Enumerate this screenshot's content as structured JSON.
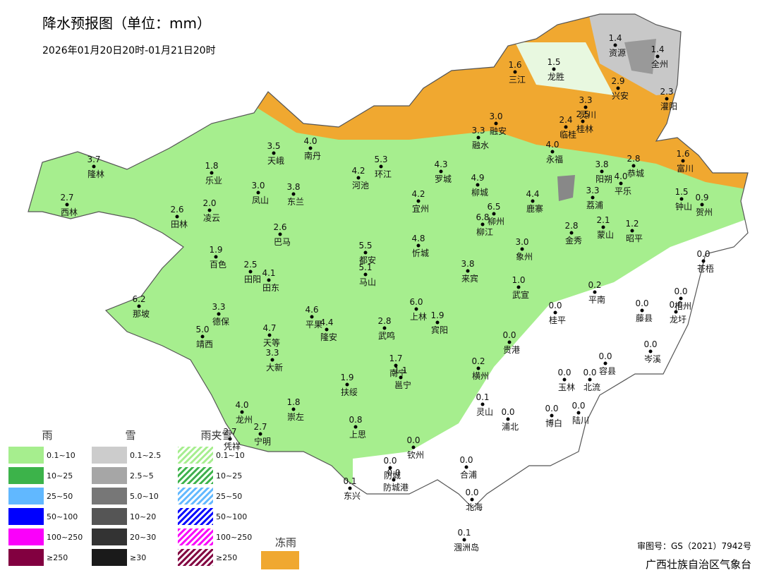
{
  "header": {
    "title": "降水预报图（单位：mm）",
    "subtitle": "2026年01月20日20时-01月21日20时"
  },
  "stations": [
    {
      "name": "隆林",
      "value": "3.7"
    },
    {
      "name": "西林",
      "value": "2.7"
    },
    {
      "name": "乐业",
      "value": "1.8"
    },
    {
      "name": "天峨",
      "value": "3.5"
    },
    {
      "name": "南丹",
      "value": "4.0"
    },
    {
      "name": "凤山",
      "value": "3.0"
    },
    {
      "name": "东兰",
      "value": "3.8"
    },
    {
      "name": "河池",
      "value": "4.2"
    },
    {
      "name": "环江",
      "value": "5.3"
    },
    {
      "name": "罗城",
      "value": "4.3"
    },
    {
      "name": "融水",
      "value": "3.3"
    },
    {
      "name": "融安",
      "value": "3.0"
    },
    {
      "name": "三江",
      "value": "1.6"
    },
    {
      "name": "龙胜",
      "value": "1.5"
    },
    {
      "name": "资源",
      "value": "1.4"
    },
    {
      "name": "全州",
      "value": "1.4"
    },
    {
      "name": "兴安",
      "value": "2.9"
    },
    {
      "name": "灌阳",
      "value": "2.3"
    },
    {
      "name": "灵川",
      "value": "3.3"
    },
    {
      "name": "桂林",
      "value": "2.5"
    },
    {
      "name": "临桂",
      "value": "2.4"
    },
    {
      "name": "永福",
      "value": "4.0"
    },
    {
      "name": "恭城",
      "value": "2.8"
    },
    {
      "name": "富川",
      "value": "1.6"
    },
    {
      "name": "阳朔",
      "value": "3.8"
    },
    {
      "name": "平乐",
      "value": "4.0"
    },
    {
      "name": "荔浦",
      "value": "3.3"
    },
    {
      "name": "钟山",
      "value": "1.5"
    },
    {
      "name": "贺州",
      "value": "0.9"
    },
    {
      "name": "宜州",
      "value": "4.2"
    },
    {
      "name": "柳城",
      "value": "4.9"
    },
    {
      "name": "鹿寨",
      "value": "4.4"
    },
    {
      "name": "柳州",
      "value": "6.5"
    },
    {
      "name": "柳江",
      "value": "6.8"
    },
    {
      "name": "蒙山",
      "value": "2.1"
    },
    {
      "name": "昭平",
      "value": "1.2"
    },
    {
      "name": "金秀",
      "value": "2.8"
    },
    {
      "name": "田林",
      "value": "2.6"
    },
    {
      "name": "凌云",
      "value": "2.0"
    },
    {
      "name": "巴马",
      "value": "2.6"
    },
    {
      "name": "百色",
      "value": "1.9"
    },
    {
      "name": "田阳",
      "value": "2.5"
    },
    {
      "name": "田东",
      "value": "4.1"
    },
    {
      "name": "都安",
      "value": "5.5"
    },
    {
      "name": "马山",
      "value": "5.1"
    },
    {
      "name": "忻城",
      "value": "4.8"
    },
    {
      "name": "象州",
      "value": "3.0"
    },
    {
      "name": "来宾",
      "value": "3.8"
    },
    {
      "name": "武宣",
      "value": "1.0"
    },
    {
      "name": "平南",
      "value": "0.2"
    },
    {
      "name": "桂平",
      "value": "0.0"
    },
    {
      "name": "苍梧",
      "value": "0.0"
    },
    {
      "name": "藤县",
      "value": "0.0"
    },
    {
      "name": "梧州",
      "value": "0.0"
    },
    {
      "name": "龙圩",
      "value": "0.0"
    },
    {
      "name": "那坡",
      "value": "6.2"
    },
    {
      "name": "德保",
      "value": "3.3"
    },
    {
      "name": "靖西",
      "value": "5.0"
    },
    {
      "name": "平果",
      "value": "4.6"
    },
    {
      "name": "隆安",
      "value": "4.4"
    },
    {
      "name": "天等",
      "value": "4.7"
    },
    {
      "name": "大新",
      "value": "3.3"
    },
    {
      "name": "武鸣",
      "value": "2.8"
    },
    {
      "name": "上林",
      "value": "6.0"
    },
    {
      "name": "宾阳",
      "value": "1.9"
    },
    {
      "name": "贵港",
      "value": "0.0"
    },
    {
      "name": "岑溪",
      "value": "0.0"
    },
    {
      "name": "横州",
      "value": "0.2"
    },
    {
      "name": "容县",
      "value": "0.0"
    },
    {
      "name": "玉林",
      "value": "0.0"
    },
    {
      "name": "北流",
      "value": "0.0"
    },
    {
      "name": "南宁",
      "value": "1.7"
    },
    {
      "name": "邕宁",
      "value": "1.1"
    },
    {
      "name": "扶绥",
      "value": "1.9"
    },
    {
      "name": "崇左",
      "value": "1.8"
    },
    {
      "name": "龙州",
      "value": "4.0"
    },
    {
      "name": "凭祥",
      "value": "2.7"
    },
    {
      "name": "宁明",
      "value": "2.7"
    },
    {
      "name": "灵山",
      "value": "0.1"
    },
    {
      "name": "浦北",
      "value": "0.0"
    },
    {
      "name": "博白",
      "value": "0.0"
    },
    {
      "name": "陆川",
      "value": "0.0"
    },
    {
      "name": "上思",
      "value": "0.8"
    },
    {
      "name": "钦州",
      "value": "0.0"
    },
    {
      "name": "防城",
      "value": "0.0"
    },
    {
      "name": "防城港",
      "value": "0.0"
    },
    {
      "name": "合浦",
      "value": "0.0"
    },
    {
      "name": "东兴",
      "value": "0.1"
    },
    {
      "name": "北海",
      "value": "0.0"
    },
    {
      "name": "涠洲岛",
      "value": "0.1"
    }
  ],
  "legend": {
    "rain": {
      "title": "雨",
      "items": [
        {
          "label": "0.1~10",
          "color": "#a6ee8e"
        },
        {
          "label": "10~25",
          "color": "#3cb34a"
        },
        {
          "label": "25~50",
          "color": "#61b8ff"
        },
        {
          "label": "50~100",
          "color": "#0000fe"
        },
        {
          "label": "100~250",
          "color": "#fa00fa"
        },
        {
          "label": "≥250",
          "color": "#820040"
        }
      ]
    },
    "snow": {
      "title": "雪",
      "items": [
        {
          "label": "0.1~2.5",
          "color": "#cccccc"
        },
        {
          "label": "2.5~5",
          "color": "#a6a6a6"
        },
        {
          "label": "5.0~10",
          "color": "#777777"
        },
        {
          "label": "10~20",
          "color": "#555555"
        },
        {
          "label": "20~30",
          "color": "#333333"
        },
        {
          "label": "≥30",
          "color": "#1a1a1a"
        }
      ]
    },
    "sleet": {
      "title": "雨夹雪",
      "items": [
        {
          "label": "0.1~10",
          "color": "#a6ee8e"
        },
        {
          "label": "10~25",
          "color": "#3cb34a"
        },
        {
          "label": "25~50",
          "color": "#61b8ff"
        },
        {
          "label": "50~100",
          "color": "#0000fe"
        },
        {
          "label": "100~250",
          "color": "#fa00fa"
        },
        {
          "label": "≥250",
          "color": "#820040"
        }
      ]
    },
    "freezing_rain": {
      "title": "冻雨",
      "color": "#f0a830"
    }
  },
  "footer": {
    "map_number": "审图号：GS（2021）7942号",
    "agency": "广西壮族自治区气象台"
  }
}
